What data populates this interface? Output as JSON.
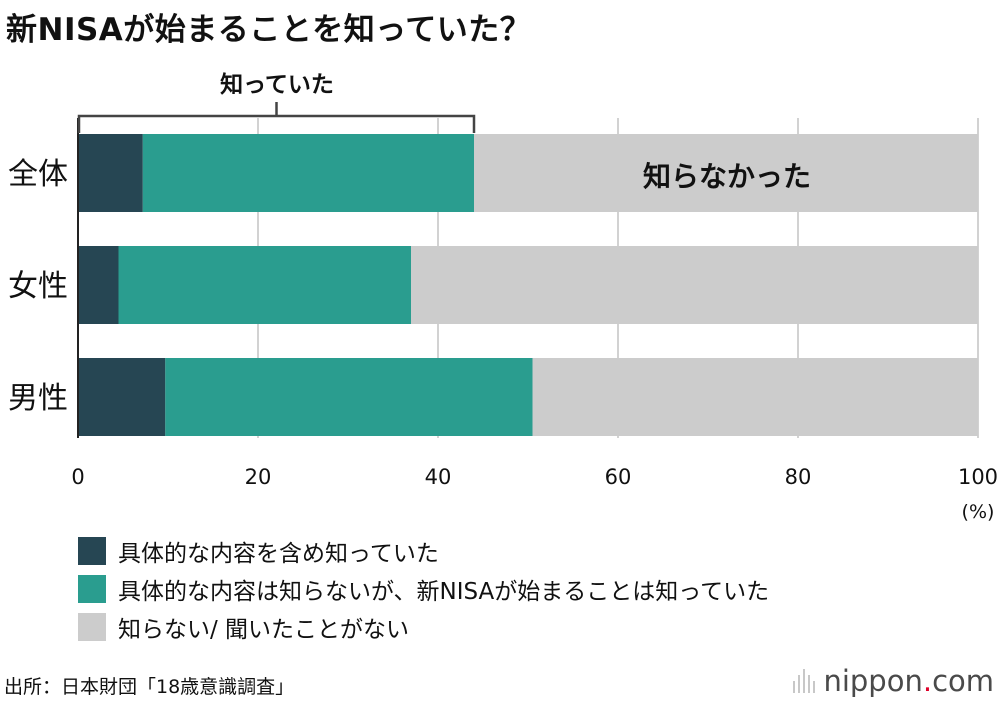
{
  "title": "新NISAが始まることを知っていた？",
  "chart_data": {
    "type": "bar",
    "orientation": "horizontal",
    "stacked": true,
    "categories": [
      "全体",
      "女性",
      "男性"
    ],
    "series": [
      {
        "name": "具体的な内容を含め知っていた",
        "color": "#264653",
        "values": [
          7.2,
          4.5,
          9.7
        ]
      },
      {
        "name": "具体的な内容は知らないが、新NISAが始まることは知っていた",
        "color": "#2a9d8f",
        "values": [
          36.8,
          32.5,
          40.8
        ]
      },
      {
        "name": "知らない/ 聞いたことがない",
        "color": "#cccccc",
        "values": [
          56.0,
          63.0,
          49.5
        ]
      }
    ],
    "xlim": [
      0,
      100
    ],
    "xticks": [
      "0",
      "20",
      "40",
      "60",
      "80",
      "100"
    ],
    "xunit": "(%)",
    "grid": true,
    "annotations": {
      "knew_bracket": "知っていた",
      "did_not_know": "知らなかった"
    },
    "legend_position": "bottom-left"
  },
  "source": "出所：日本財団「18歳意識調査」",
  "brand": {
    "name": "nippon",
    "dot": ".",
    "tld": "com"
  }
}
